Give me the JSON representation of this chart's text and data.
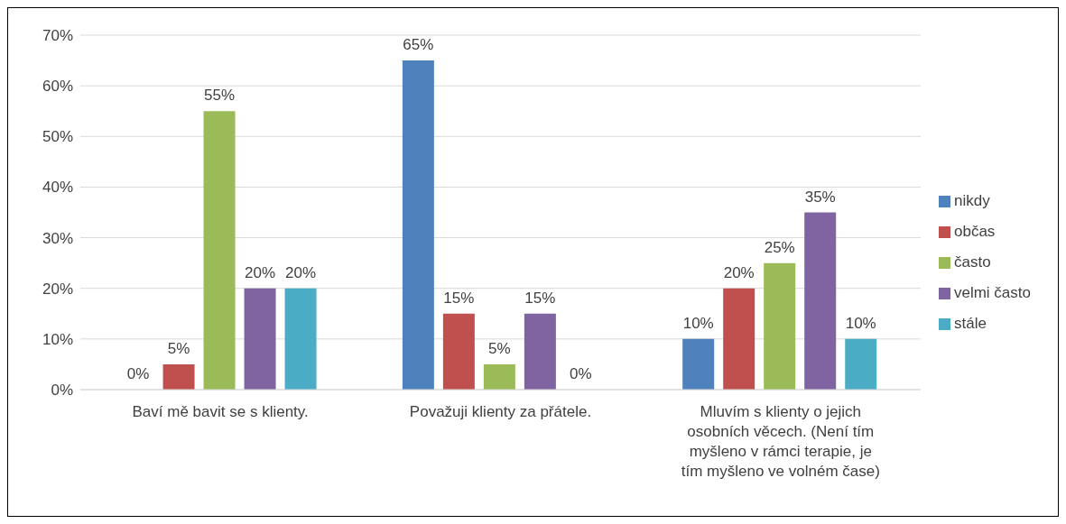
{
  "chart_data": {
    "type": "bar",
    "categories": [
      "Baví mě bavit se s klienty.",
      "Považuji klienty za přátele.",
      "Mluvím s klienty o jejich osobních věcech. (Není tím myšleno v rámci terapie, je tím myšleno ve volném čase)"
    ],
    "series": [
      {
        "name": "nikdy",
        "color": "#4f81bd",
        "values": [
          0,
          65,
          10
        ],
        "value_labels": [
          "0%",
          "65%",
          "10%"
        ]
      },
      {
        "name": "občas",
        "color": "#c0504d",
        "values": [
          5,
          15,
          20
        ],
        "value_labels": [
          "5%",
          "15%",
          "20%"
        ]
      },
      {
        "name": "často",
        "color": "#9bbb59",
        "values": [
          55,
          5,
          25
        ],
        "value_labels": [
          "55%",
          "5%",
          "25%"
        ]
      },
      {
        "name": "velmi často",
        "color": "#8064a2",
        "values": [
          20,
          15,
          35
        ],
        "value_labels": [
          "20%",
          "15%",
          "35%"
        ]
      },
      {
        "name": "stále",
        "color": "#4bacc6",
        "values": [
          20,
          0,
          10
        ],
        "value_labels": [
          "20%",
          "0%",
          "10%"
        ]
      }
    ],
    "ylim": [
      0,
      70
    ],
    "yticks": [
      {
        "value": 0,
        "label": "0%"
      },
      {
        "value": 10,
        "label": "10%"
      },
      {
        "value": 20,
        "label": "20%"
      },
      {
        "value": 30,
        "label": "30%"
      },
      {
        "value": 40,
        "label": "40%"
      },
      {
        "value": 50,
        "label": "50%"
      },
      {
        "value": 60,
        "label": "60%"
      },
      {
        "value": 70,
        "label": "70%"
      }
    ],
    "grid": "y",
    "legend": "right"
  }
}
